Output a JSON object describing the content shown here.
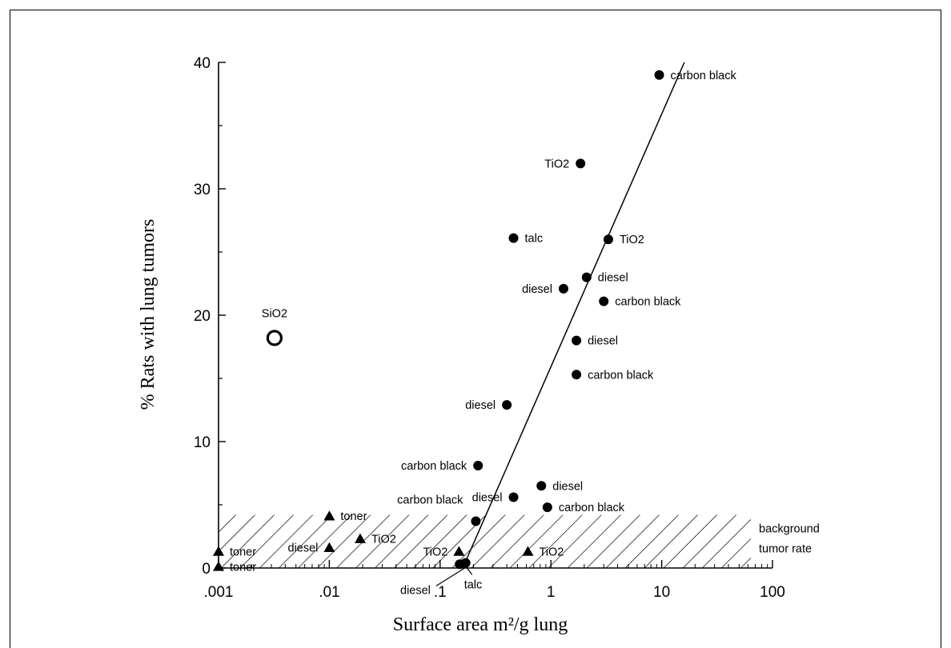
{
  "chart_data": {
    "type": "scatter",
    "xscale": "log",
    "xlim": [
      0.001,
      100
    ],
    "ylim": [
      0,
      40
    ],
    "xlabel": "Surface area m²/g lung",
    "ylabel": "% Rats with lung tumors",
    "x_ticks": [
      {
        "value": 0.001,
        "label": ".001"
      },
      {
        "value": 0.01,
        "label": ".01"
      },
      {
        "value": 0.1,
        "label": ".1"
      },
      {
        "value": 1,
        "label": "1"
      },
      {
        "value": 10,
        "label": "10"
      },
      {
        "value": 100,
        "label": "100"
      }
    ],
    "y_ticks": [
      {
        "value": 0,
        "label": "0"
      },
      {
        "value": 10,
        "label": "10"
      },
      {
        "value": 20,
        "label": "20"
      },
      {
        "value": 30,
        "label": "30"
      },
      {
        "value": 40,
        "label": "40"
      }
    ],
    "background_band": {
      "ymin": 0,
      "ymax": 4.2,
      "label_line1": "background",
      "label_line2": "tumor rate"
    },
    "fit_line": [
      [
        0.16,
        0
      ],
      [
        16,
        40
      ]
    ],
    "points": [
      {
        "marker": "circle",
        "x": 9.5,
        "y": 39,
        "label": "carbon black",
        "label_pos": "right"
      },
      {
        "marker": "circle",
        "x": 1.85,
        "y": 32,
        "label": "TiO2",
        "label_pos": "left"
      },
      {
        "marker": "circle",
        "x": 0.46,
        "y": 26.1,
        "label": "talc",
        "label_pos": "right"
      },
      {
        "marker": "circle",
        "x": 3.3,
        "y": 26,
        "label": "TiO2",
        "label_pos": "right"
      },
      {
        "marker": "circle",
        "x": 2.1,
        "y": 23,
        "label": "diesel",
        "label_pos": "right"
      },
      {
        "marker": "circle",
        "x": 1.3,
        "y": 22.1,
        "label": "diesel",
        "label_pos": "left"
      },
      {
        "marker": "circle",
        "x": 3.0,
        "y": 21.1,
        "label": "carbon black",
        "label_pos": "right"
      },
      {
        "marker": "circle",
        "x": 1.7,
        "y": 18,
        "label": "diesel",
        "label_pos": "right"
      },
      {
        "marker": "circle",
        "x": 1.7,
        "y": 15.3,
        "label": "carbon black",
        "label_pos": "right"
      },
      {
        "marker": "circle",
        "x": 0.4,
        "y": 12.9,
        "label": "diesel",
        "label_pos": "left"
      },
      {
        "marker": "circle",
        "x": 0.22,
        "y": 8.1,
        "label": "carbon black",
        "label_pos": "left"
      },
      {
        "marker": "circle",
        "x": 0.82,
        "y": 6.5,
        "label": "diesel",
        "label_pos": "right"
      },
      {
        "marker": "circle",
        "x": 0.46,
        "y": 5.6,
        "label": "diesel",
        "label_pos": "left"
      },
      {
        "marker": "circle",
        "x": 0.93,
        "y": 4.8,
        "label": "carbon black",
        "label_pos": "right"
      },
      {
        "marker": "circle",
        "x": 0.21,
        "y": 3.7,
        "label": "carbon black",
        "label_pos": "above-left"
      },
      {
        "marker": "circle",
        "x": 0.15,
        "y": 0.3,
        "label": "",
        "label_pos": "none"
      },
      {
        "marker": "circle",
        "x": 0.17,
        "y": 0.4,
        "label": "",
        "label_pos": "none"
      },
      {
        "marker": "open-circle",
        "x": 0.0032,
        "y": 18.2,
        "label": "SiO2",
        "label_pos": "above"
      },
      {
        "marker": "triangle",
        "x": 0.01,
        "y": 4.1,
        "label": "toner",
        "label_pos": "right"
      },
      {
        "marker": "triangle",
        "x": 0.001,
        "y": 1.3,
        "label": "toner",
        "label_pos": "right"
      },
      {
        "marker": "triangle",
        "x": 0.001,
        "y": 0.1,
        "label": "toner",
        "label_pos": "right"
      },
      {
        "marker": "triangle",
        "x": 0.01,
        "y": 1.6,
        "label": "diesel",
        "label_pos": "left"
      },
      {
        "marker": "triangle",
        "x": 0.019,
        "y": 2.3,
        "label": "TiO2",
        "label_pos": "right"
      },
      {
        "marker": "triangle",
        "x": 0.148,
        "y": 1.3,
        "label": "TiO2",
        "label_pos": "left"
      },
      {
        "marker": "triangle",
        "x": 0.62,
        "y": 1.3,
        "label": "TiO2",
        "label_pos": "right"
      }
    ],
    "callouts": [
      {
        "label": "diesel",
        "from": [
          0.165,
          0.1
        ]
      },
      {
        "label": "talc",
        "from": [
          0.17,
          0.1
        ]
      }
    ]
  }
}
